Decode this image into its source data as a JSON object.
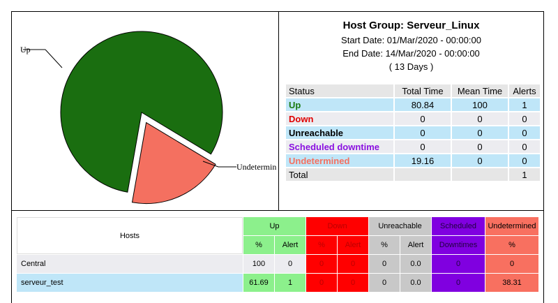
{
  "colors": {
    "up": "#1a6e10",
    "down": "#e00000",
    "unreachable": "#000000",
    "scheduled": "#8a10e0",
    "undetermined": "#f47060",
    "row_band": "#bfe6f8"
  },
  "info": {
    "title": "Host Group: Serveur_Linux",
    "start": "Start Date: 01/Mar/2020 - 00:00:00",
    "end": "End Date: 14/Mar/2020 - 00:00:00",
    "days": "( 13 Days )"
  },
  "chart_data": {
    "type": "pie",
    "slices": [
      {
        "label": "Up",
        "value": 80.84,
        "color": "#1a6e10"
      },
      {
        "label": "Undetermined",
        "value": 19.16,
        "color": "#f47060",
        "exploded": true
      }
    ],
    "visible_labels": [
      "Up",
      "Undetermin"
    ]
  },
  "stats": {
    "headers": [
      "Status",
      "Total Time",
      "Mean Time",
      "Alerts"
    ],
    "rows": [
      {
        "label": "Up",
        "total": "80.84",
        "mean": "100",
        "alerts": "1"
      },
      {
        "label": "Down",
        "total": "0",
        "mean": "0",
        "alerts": "0"
      },
      {
        "label": "Unreachable",
        "total": "0",
        "mean": "0",
        "alerts": "0"
      },
      {
        "label": "Scheduled downtime",
        "total": "0",
        "mean": "0",
        "alerts": "0"
      },
      {
        "label": "Undetermined",
        "total": "19.16",
        "mean": "0",
        "alerts": "0"
      }
    ],
    "total_label": "Total",
    "total_alerts": "1"
  },
  "hosts": {
    "hosts_header": "Hosts",
    "groups": {
      "up": "Up",
      "down": "Down",
      "unreachable": "Unreachable",
      "scheduled": "Scheduled",
      "undetermined": "Undetermined"
    },
    "sub": {
      "pct": "%",
      "alert": "Alert",
      "downtimes": "Downtimes"
    },
    "rows": [
      {
        "name": "Central",
        "up_pct": "100",
        "up_alert": "0",
        "down_pct": "0",
        "down_alert": "0",
        "unr_pct": "0",
        "unr_alert": "0.0",
        "sched": "0",
        "undet": "0"
      },
      {
        "name": "serveur_test",
        "up_pct": "61.69",
        "up_alert": "1",
        "down_pct": "0",
        "down_alert": "0",
        "unr_pct": "0",
        "unr_alert": "0.0",
        "sched": "0",
        "undet": "38.31"
      }
    ]
  }
}
